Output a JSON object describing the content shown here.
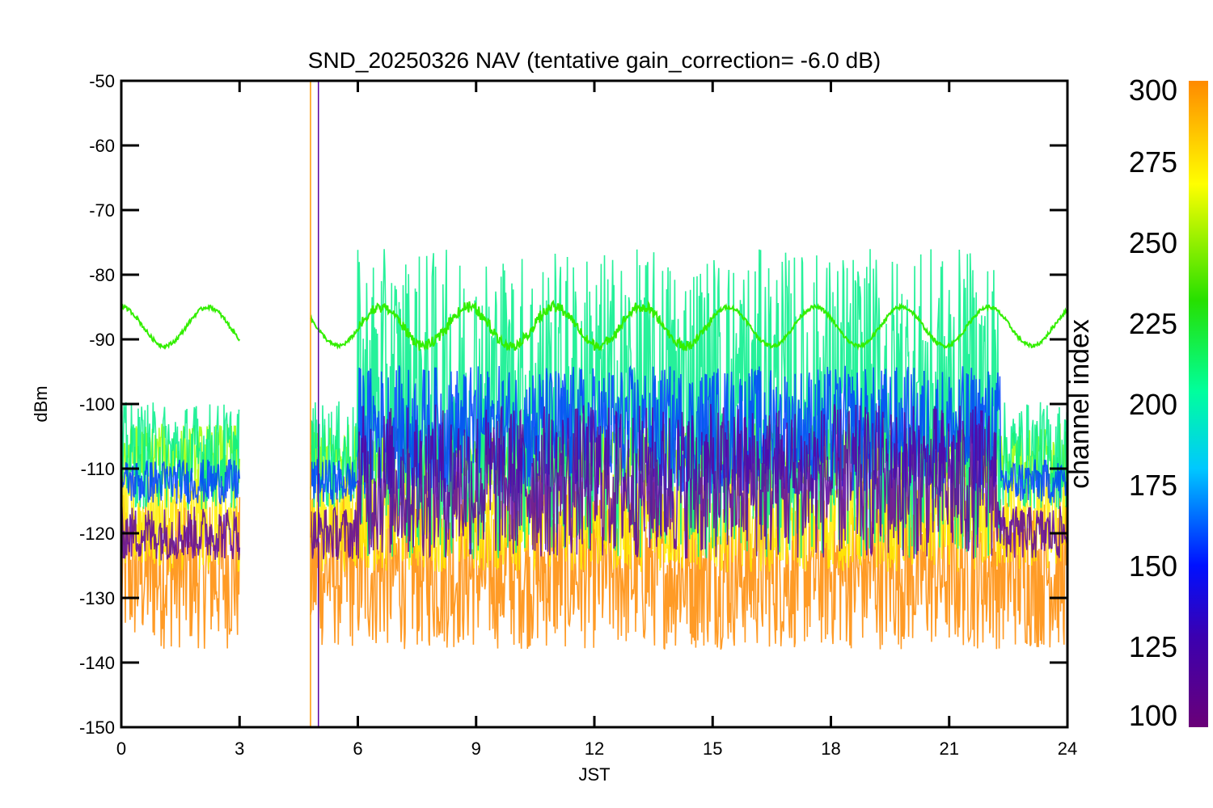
{
  "chart_data": {
    "type": "line",
    "title": "SND_20250326 NAV (tentative gain_correction= -6.0 dB)",
    "xlabel": "JST",
    "ylabel": "dBm",
    "xlim": [
      0,
      24
    ],
    "ylim": [
      -150,
      -50
    ],
    "x_ticks": [
      0,
      3,
      6,
      9,
      12,
      15,
      18,
      21,
      24
    ],
    "y_ticks": [
      -150,
      -140,
      -130,
      -120,
      -110,
      -100,
      -90,
      -80,
      -70,
      -60,
      -50
    ],
    "data_gap": [
      3.0,
      4.8
    ],
    "grid": false,
    "colorbar": {
      "title": "channel index",
      "range": [
        100,
        300
      ],
      "ticks": [
        100,
        125,
        150,
        175,
        200,
        225,
        250,
        275,
        300
      ],
      "colors": [
        "#6a0078",
        "#3b00b0",
        "#0010ff",
        "#00c8ff",
        "#00ff9c",
        "#26e000",
        "#ffff00",
        "#ff8a00"
      ]
    },
    "series": [
      {
        "approx_channel": 300,
        "color": "#ff8a00",
        "center_dBm": -126,
        "spread_dBm": 12
      },
      {
        "approx_channel": 275,
        "color": "#ffee00",
        "center_dBm": -118,
        "spread_dBm": 8
      },
      {
        "approx_channel": 245,
        "color": "#99ff00",
        "center_dBm": -108,
        "spread_dBm": 5
      },
      {
        "approx_channel": 210,
        "color": "#00ee88",
        "center_dBm": -100,
        "spread_dBm": 24
      },
      {
        "approx_channel": 150,
        "color": "#0040ff",
        "center_dBm": -104,
        "spread_dBm": 10
      },
      {
        "approx_channel": 110,
        "color": "#5a00a0",
        "center_dBm": -112,
        "spread_dBm": 12
      },
      {
        "approx_channel": 240,
        "color": "#33ee00",
        "center_dBm": -88,
        "amplitude_dBm": 3,
        "period_h": 2.2
      }
    ],
    "spikes": [
      {
        "x": 4.8,
        "color": "#ff9900"
      },
      {
        "x": 5.0,
        "color": "#5a00a0"
      }
    ]
  }
}
